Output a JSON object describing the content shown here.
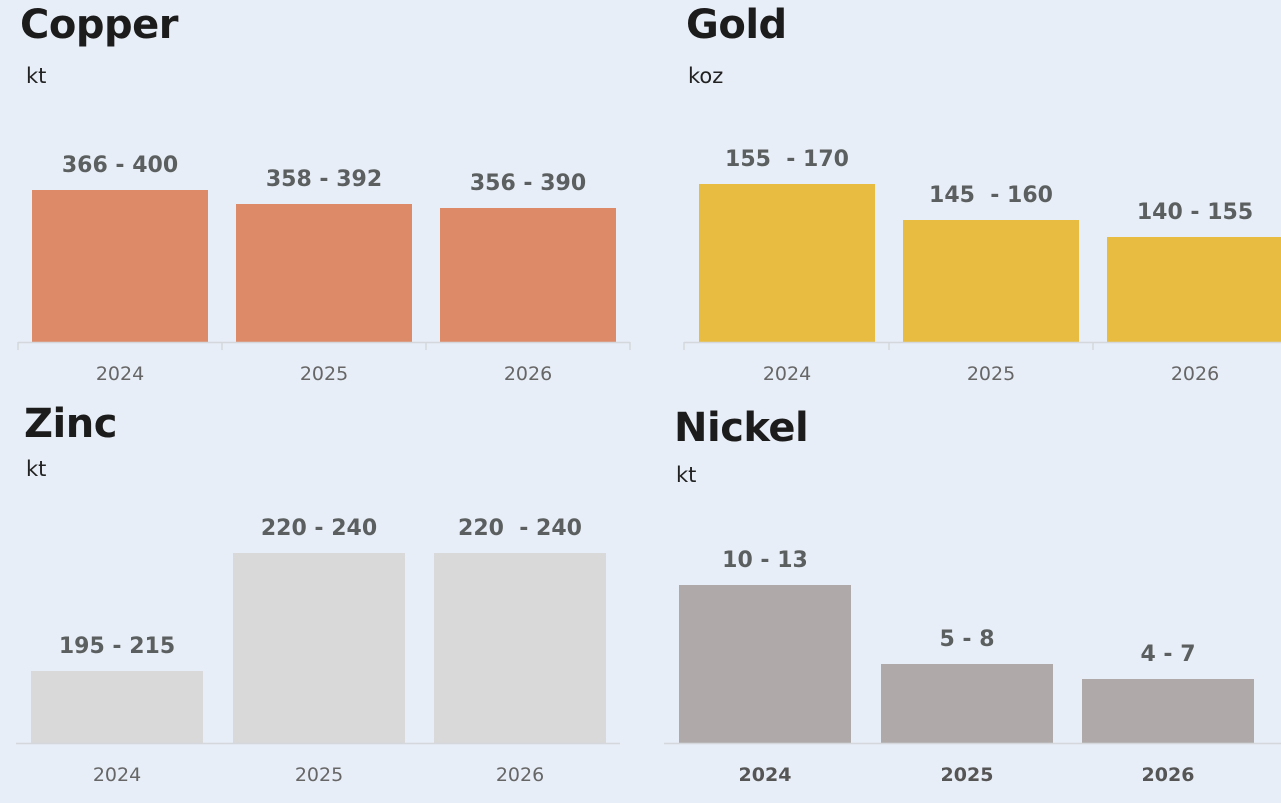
{
  "chart_data": [
    {
      "type": "bar",
      "title": "Copper",
      "subtitle": "kt",
      "color": "#dd8a69",
      "categories": [
        "2024",
        "2025",
        "2026"
      ],
      "ranges": [
        [
          366,
          400
        ],
        [
          358,
          392
        ],
        [
          356,
          390
        ]
      ],
      "value_labels": [
        "366 - 400",
        "358 - 392",
        "356 - 390"
      ],
      "ylim": [
        0,
        430
      ],
      "axis_line": true,
      "bold_ticks": false
    },
    {
      "type": "bar",
      "title": "Gold",
      "subtitle": "koz",
      "color": "#e8bc41",
      "categories": [
        "2024",
        "2025",
        "2026"
      ],
      "ranges": [
        [
          155,
          170
        ],
        [
          145,
          160
        ],
        [
          140,
          155
        ]
      ],
      "value_labels": [
        "155  - 170",
        "145  - 160",
        "140 - 155"
      ],
      "ylim": [
        0,
        190
      ],
      "axis_line": true,
      "bold_ticks": false
    },
    {
      "type": "bar",
      "title": "Zinc",
      "subtitle": "kt",
      "color": "#d9d9d9",
      "categories": [
        "2024",
        "2025",
        "2026"
      ],
      "ranges": [
        [
          195,
          215
        ],
        [
          220,
          240
        ],
        [
          220,
          240
        ]
      ],
      "value_labels": [
        "195 - 215",
        "220 - 240",
        "220  - 240"
      ],
      "ylim": [
        0,
        260
      ],
      "axis_line": true,
      "bold_ticks": false
    },
    {
      "type": "bar",
      "title": "Nickel",
      "subtitle": "kt",
      "color": "#afaaa9",
      "categories": [
        "2024",
        "2025",
        "2026"
      ],
      "ranges": [
        [
          10,
          13
        ],
        [
          5,
          8
        ],
        [
          4,
          7
        ]
      ],
      "value_labels": [
        "10 - 13",
        "5 - 8",
        "4 - 7"
      ],
      "ylim": [
        0,
        17
      ],
      "axis_line": true,
      "bold_ticks": true
    }
  ]
}
